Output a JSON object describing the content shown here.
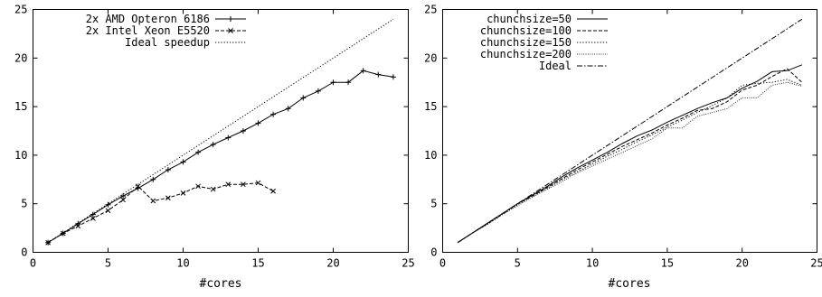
{
  "chart_data": [
    {
      "type": "line",
      "xlabel": "",
      "ylabel": "",
      "xlim": [
        0,
        25
      ],
      "ylim": [
        0,
        25
      ],
      "xticks": [
        "0",
        "5",
        "10",
        "15",
        "20",
        "25"
      ],
      "yticks": [
        "0",
        "5",
        "10",
        "15",
        "20",
        "25"
      ],
      "grid": false,
      "legend": "top-left",
      "series": [
        {
          "name": "2x AMD Opteron 6186",
          "style": "solid",
          "marker": "plus",
          "x": [
            1,
            2,
            3,
            4,
            5,
            6,
            7,
            8,
            9,
            10,
            11,
            12,
            13,
            14,
            15,
            16,
            17,
            18,
            19,
            20,
            21,
            22,
            23,
            24
          ],
          "y": [
            1.0,
            1.95,
            2.95,
            3.9,
            4.9,
            5.8,
            6.6,
            7.5,
            8.5,
            9.3,
            10.3,
            11.1,
            11.8,
            12.5,
            13.3,
            14.2,
            14.8,
            15.9,
            16.6,
            17.5,
            17.5,
            18.7,
            18.3,
            18.05
          ]
        },
        {
          "name": "2x Intel Xeon E5520",
          "style": "dashed",
          "marker": "cross",
          "x": [
            1,
            2,
            3,
            4,
            5,
            6,
            7,
            8,
            9,
            10,
            11,
            12,
            13,
            14,
            15,
            16
          ],
          "y": [
            1.0,
            1.95,
            2.7,
            3.5,
            4.3,
            5.4,
            6.8,
            5.3,
            5.6,
            6.1,
            6.8,
            6.5,
            7.0,
            7.0,
            7.15,
            6.3
          ]
        },
        {
          "name": "Ideal speedup",
          "style": "dotted",
          "marker": "none",
          "x": [
            1,
            24
          ],
          "y": [
            1,
            24
          ]
        }
      ]
    },
    {
      "type": "line",
      "xlabel": "#cores",
      "ylabel": "",
      "xlim": [
        0,
        25
      ],
      "ylim": [
        0,
        25
      ],
      "xticks": [
        "0",
        "5",
        "10",
        "15",
        "20",
        "25"
      ],
      "yticks": [
        "0",
        "5",
        "10",
        "15",
        "20",
        "25"
      ],
      "grid": false,
      "legend": "top-left",
      "series": [
        {
          "name": "chunchsize=50",
          "style": "solid",
          "x": [
            1,
            2,
            3,
            4,
            5,
            6,
            7,
            8,
            9,
            10,
            11,
            12,
            13,
            14,
            15,
            16,
            17,
            18,
            19,
            20,
            21,
            22,
            23,
            24
          ],
          "y": [
            1.0,
            2.0,
            3.0,
            4.0,
            5.0,
            5.9,
            6.8,
            7.8,
            8.7,
            9.5,
            10.3,
            11.2,
            12.0,
            12.6,
            13.4,
            14.1,
            14.8,
            15.4,
            15.9,
            16.9,
            17.6,
            18.6,
            18.7,
            19.3
          ]
        },
        {
          "name": "chunchsize=100",
          "style": "dashed",
          "x": [
            1,
            2,
            3,
            4,
            5,
            6,
            7,
            8,
            9,
            10,
            11,
            12,
            13,
            14,
            15,
            16,
            17,
            18,
            19,
            20,
            21,
            22,
            23,
            24
          ],
          "y": [
            1.0,
            2.0,
            3.0,
            4.0,
            5.0,
            5.8,
            6.7,
            7.6,
            8.5,
            9.3,
            10.1,
            10.9,
            11.6,
            12.3,
            13.1,
            13.8,
            14.6,
            14.8,
            15.5,
            16.7,
            17.2,
            18.1,
            18.9,
            17.5
          ]
        },
        {
          "name": "chunchsize=150",
          "style": "dotted",
          "x": [
            1,
            2,
            3,
            4,
            5,
            6,
            7,
            8,
            9,
            10,
            11,
            12,
            13,
            14,
            15,
            16,
            17,
            18,
            19,
            20,
            21,
            22,
            23,
            24
          ],
          "y": [
            1.0,
            2.0,
            2.9,
            3.9,
            4.9,
            5.8,
            6.6,
            7.5,
            8.3,
            9.1,
            9.9,
            10.6,
            11.4,
            12.1,
            12.9,
            13.6,
            14.4,
            15.1,
            15.9,
            17.2,
            17.4,
            17.5,
            17.8,
            17.2
          ]
        },
        {
          "name": "chunchsize=200",
          "style": "finedotted",
          "x": [
            1,
            2,
            3,
            4,
            5,
            6,
            7,
            8,
            9,
            10,
            11,
            12,
            13,
            14,
            15,
            16,
            17,
            18,
            19,
            20,
            21,
            22,
            23,
            24
          ],
          "y": [
            1.0,
            2.0,
            2.9,
            3.9,
            4.8,
            5.7,
            6.5,
            7.3,
            8.2,
            8.9,
            9.6,
            10.3,
            11.0,
            11.7,
            12.8,
            12.8,
            14.0,
            14.4,
            14.8,
            15.9,
            15.9,
            17.2,
            17.5,
            17.1
          ]
        },
        {
          "name": "Ideal",
          "style": "dashdot",
          "x": [
            1,
            24
          ],
          "y": [
            1,
            24
          ]
        }
      ]
    }
  ],
  "left_xlabel": "#cores"
}
